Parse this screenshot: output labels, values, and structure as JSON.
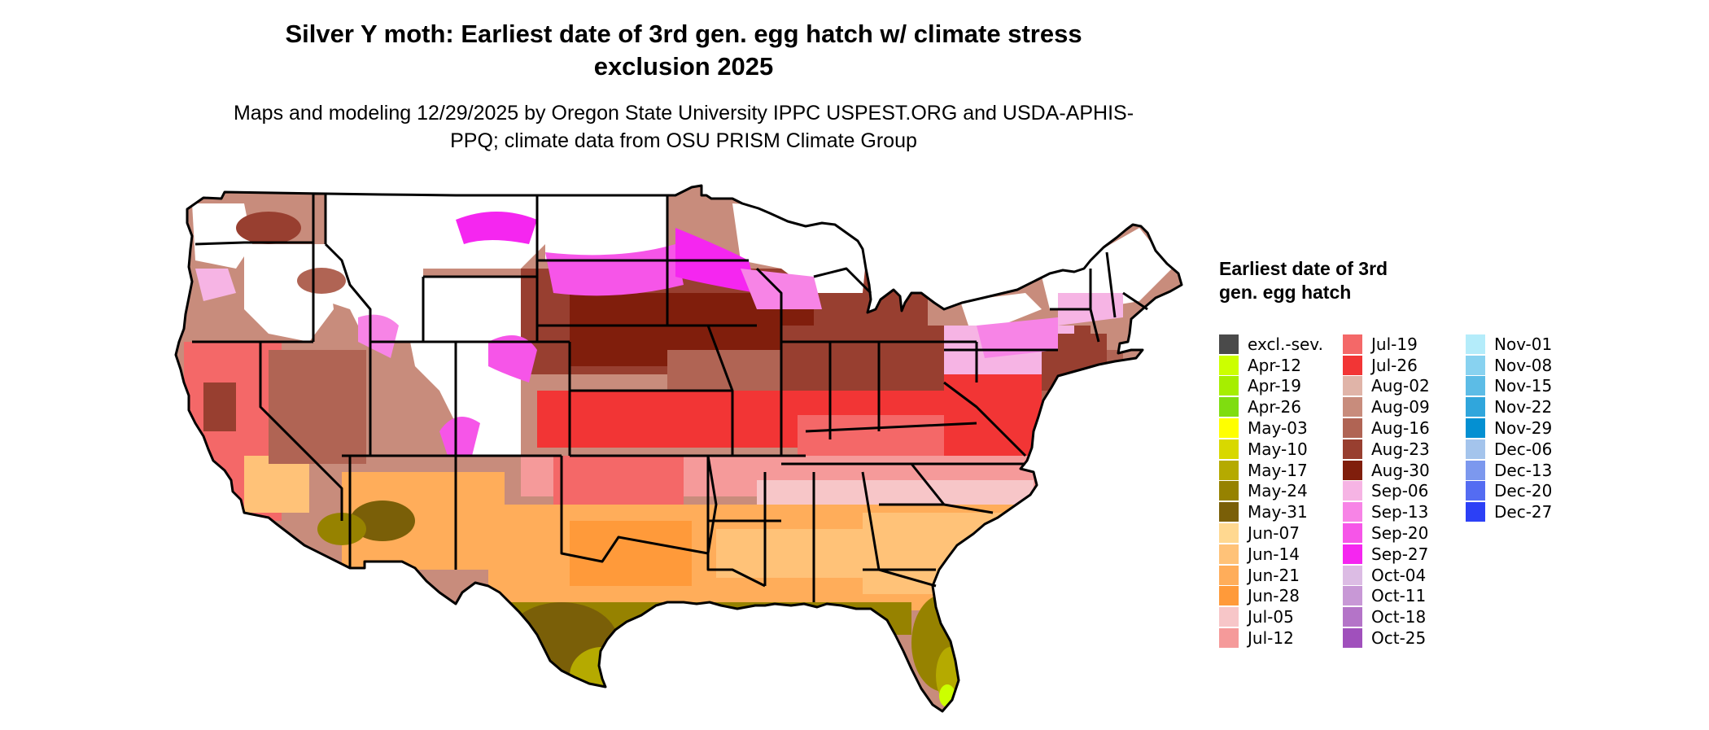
{
  "title": "Silver Y moth: Earliest date of 3rd gen. egg hatch w/ climate stress exclusion 2025",
  "subtitle": "Maps and modeling 12/29/2025 by Oregon State University IPPC USPEST.ORG and USDA-APHIS-PPQ; climate data from OSU PRISM Climate Group",
  "legend": {
    "title": "Earliest date of 3rd gen. egg hatch",
    "columns": [
      [
        {
          "label": "excl.-sev.",
          "color": "#4a4a4a"
        },
        {
          "label": "Apr-12",
          "color": "#ccff00"
        },
        {
          "label": "Apr-19",
          "color": "#a6ee00"
        },
        {
          "label": "Apr-26",
          "color": "#7fdd10"
        },
        {
          "label": "May-03",
          "color": "#ffff00"
        },
        {
          "label": "May-10",
          "color": "#d8d800"
        },
        {
          "label": "May-17",
          "color": "#b5aa00"
        },
        {
          "label": "May-24",
          "color": "#968200"
        },
        {
          "label": "May-31",
          "color": "#7a5f08"
        },
        {
          "label": "Jun-07",
          "color": "#ffd890"
        },
        {
          "label": "Jun-14",
          "color": "#ffc278"
        },
        {
          "label": "Jun-21",
          "color": "#ffad5a"
        },
        {
          "label": "Jun-28",
          "color": "#ff9a3a"
        },
        {
          "label": "Jul-05",
          "color": "#f7c6c8"
        },
        {
          "label": "Jul-12",
          "color": "#f59a9a"
        }
      ],
      [
        {
          "label": "Jul-19",
          "color": "#f46868"
        },
        {
          "label": "Jul-26",
          "color": "#f23535"
        },
        {
          "label": "Aug-02",
          "color": "#e0b4a8"
        },
        {
          "label": "Aug-09",
          "color": "#c88c7c"
        },
        {
          "label": "Aug-16",
          "color": "#b06454"
        },
        {
          "label": "Aug-23",
          "color": "#983f30"
        },
        {
          "label": "Aug-30",
          "color": "#801e0c"
        },
        {
          "label": "Sep-06",
          "color": "#f6b4e4"
        },
        {
          "label": "Sep-13",
          "color": "#f784e6"
        },
        {
          "label": "Sep-20",
          "color": "#f655e8"
        },
        {
          "label": "Sep-27",
          "color": "#f526f0"
        },
        {
          "label": "Oct-04",
          "color": "#dcbce4"
        },
        {
          "label": "Oct-11",
          "color": "#c898d6"
        },
        {
          "label": "Oct-18",
          "color": "#b474c8"
        },
        {
          "label": "Oct-25",
          "color": "#a050bc"
        }
      ],
      [
        {
          "label": "Nov-01",
          "color": "#b4ecfa"
        },
        {
          "label": "Nov-08",
          "color": "#88d2f0"
        },
        {
          "label": "Nov-15",
          "color": "#5cbce6"
        },
        {
          "label": "Nov-22",
          "color": "#30a6dc"
        },
        {
          "label": "Nov-29",
          "color": "#0490d2"
        },
        {
          "label": "Dec-06",
          "color": "#a4c4ec"
        },
        {
          "label": "Dec-13",
          "color": "#7c98ee"
        },
        {
          "label": "Dec-20",
          "color": "#546cf2"
        },
        {
          "label": "Dec-27",
          "color": "#2c40f6"
        }
      ]
    ]
  },
  "colors": {
    "excluded": "#ffffff",
    "border": "#000000"
  }
}
